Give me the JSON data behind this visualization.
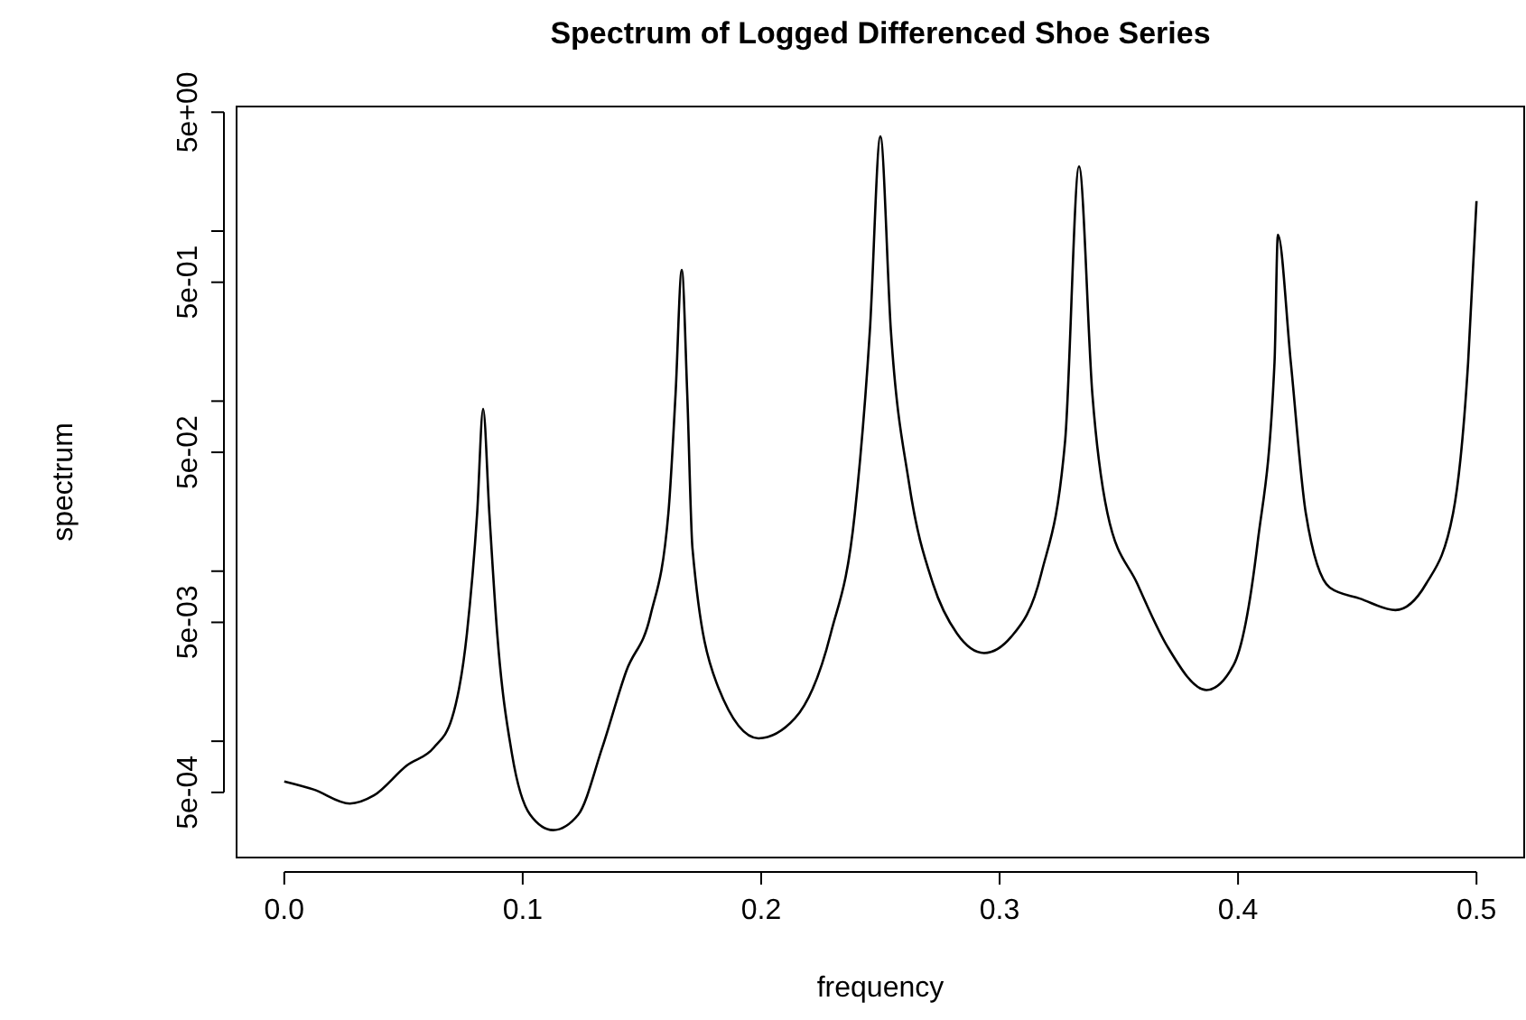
{
  "chart_data": {
    "type": "line",
    "title": "Spectrum of Logged Differenced Shoe Series",
    "xlabel": "frequency",
    "ylabel": "spectrum",
    "log": true,
    "grid": false,
    "marker": "none",
    "line_style": "solid",
    "xlim": [
      -0.02,
      0.52
    ],
    "xticks": [
      {
        "value": 0,
        "label": "0.0"
      },
      {
        "value": 0.1,
        "label": "0.1"
      },
      {
        "value": 0.2,
        "label": "0.2"
      },
      {
        "value": 0.3,
        "label": "0.3"
      },
      {
        "value": 0.4,
        "label": "0.4"
      },
      {
        "value": 0.5,
        "label": "0.5"
      }
    ],
    "ylim": [
      0.000207,
      5.4
    ],
    "yticks": [
      {
        "value": 0.0005,
        "label": "5e-04"
      },
      {
        "value": 0.001,
        "label": null
      },
      {
        "value": 0.005,
        "label": "5e-03"
      },
      {
        "value": 0.01,
        "label": null
      },
      {
        "value": 0.05,
        "label": "5e-02"
      },
      {
        "value": 0.1,
        "label": null
      },
      {
        "value": 0.5,
        "label": "5e-01"
      },
      {
        "value": 1,
        "label": null
      },
      {
        "value": 5,
        "label": "5e+00"
      }
    ],
    "series": [
      {
        "color": "#000000",
        "x": [
          0,
          0.0123,
          0.0275,
          0.0376,
          0.0514,
          0.0628,
          0.0703,
          0.0766,
          0.0809,
          0.0834,
          0.086,
          0.0893,
          0.0955,
          0.1031,
          0.1127,
          0.1233,
          0.1334,
          0.1435,
          0.1536,
          0.1611,
          0.1641,
          0.1667,
          0.169,
          0.1712,
          0.1813,
          0.1989,
          0.2141,
          0.2292,
          0.2393,
          0.2456,
          0.25,
          0.2544,
          0.262,
          0.2721,
          0.2821,
          0.2935,
          0.3048,
          0.3175,
          0.3275,
          0.3333,
          0.3389,
          0.3452,
          0.3578,
          0.3704,
          0.3868,
          0.3981,
          0.4082,
          0.4153,
          0.4167,
          0.4221,
          0.4284,
          0.4385,
          0.4511,
          0.466,
          0.4788,
          0.4902,
          0.4965,
          0.5
        ],
        "values": [
          0.00058,
          0.00052,
          0.00043,
          0.00048,
          0.00072,
          0.00092,
          0.00136,
          0.0043,
          0.022,
          0.09,
          0.022,
          0.0043,
          0.00084,
          0.00037,
          0.0003,
          0.00037,
          0.00092,
          0.0026,
          0.0055,
          0.022,
          0.11,
          0.59,
          0.11,
          0.0136,
          0.0022,
          0.00104,
          0.00136,
          0.0043,
          0.022,
          0.26,
          3.6,
          0.26,
          0.033,
          0.0084,
          0.0043,
          0.0033,
          0.0041,
          0.0097,
          0.059,
          2.4,
          0.11,
          0.022,
          0.0084,
          0.0036,
          0.002,
          0.0028,
          0.0147,
          0.17,
          0.95,
          0.17,
          0.022,
          0.008,
          0.0069,
          0.0059,
          0.0084,
          0.022,
          0.17,
          1.5
        ]
      }
    ]
  }
}
